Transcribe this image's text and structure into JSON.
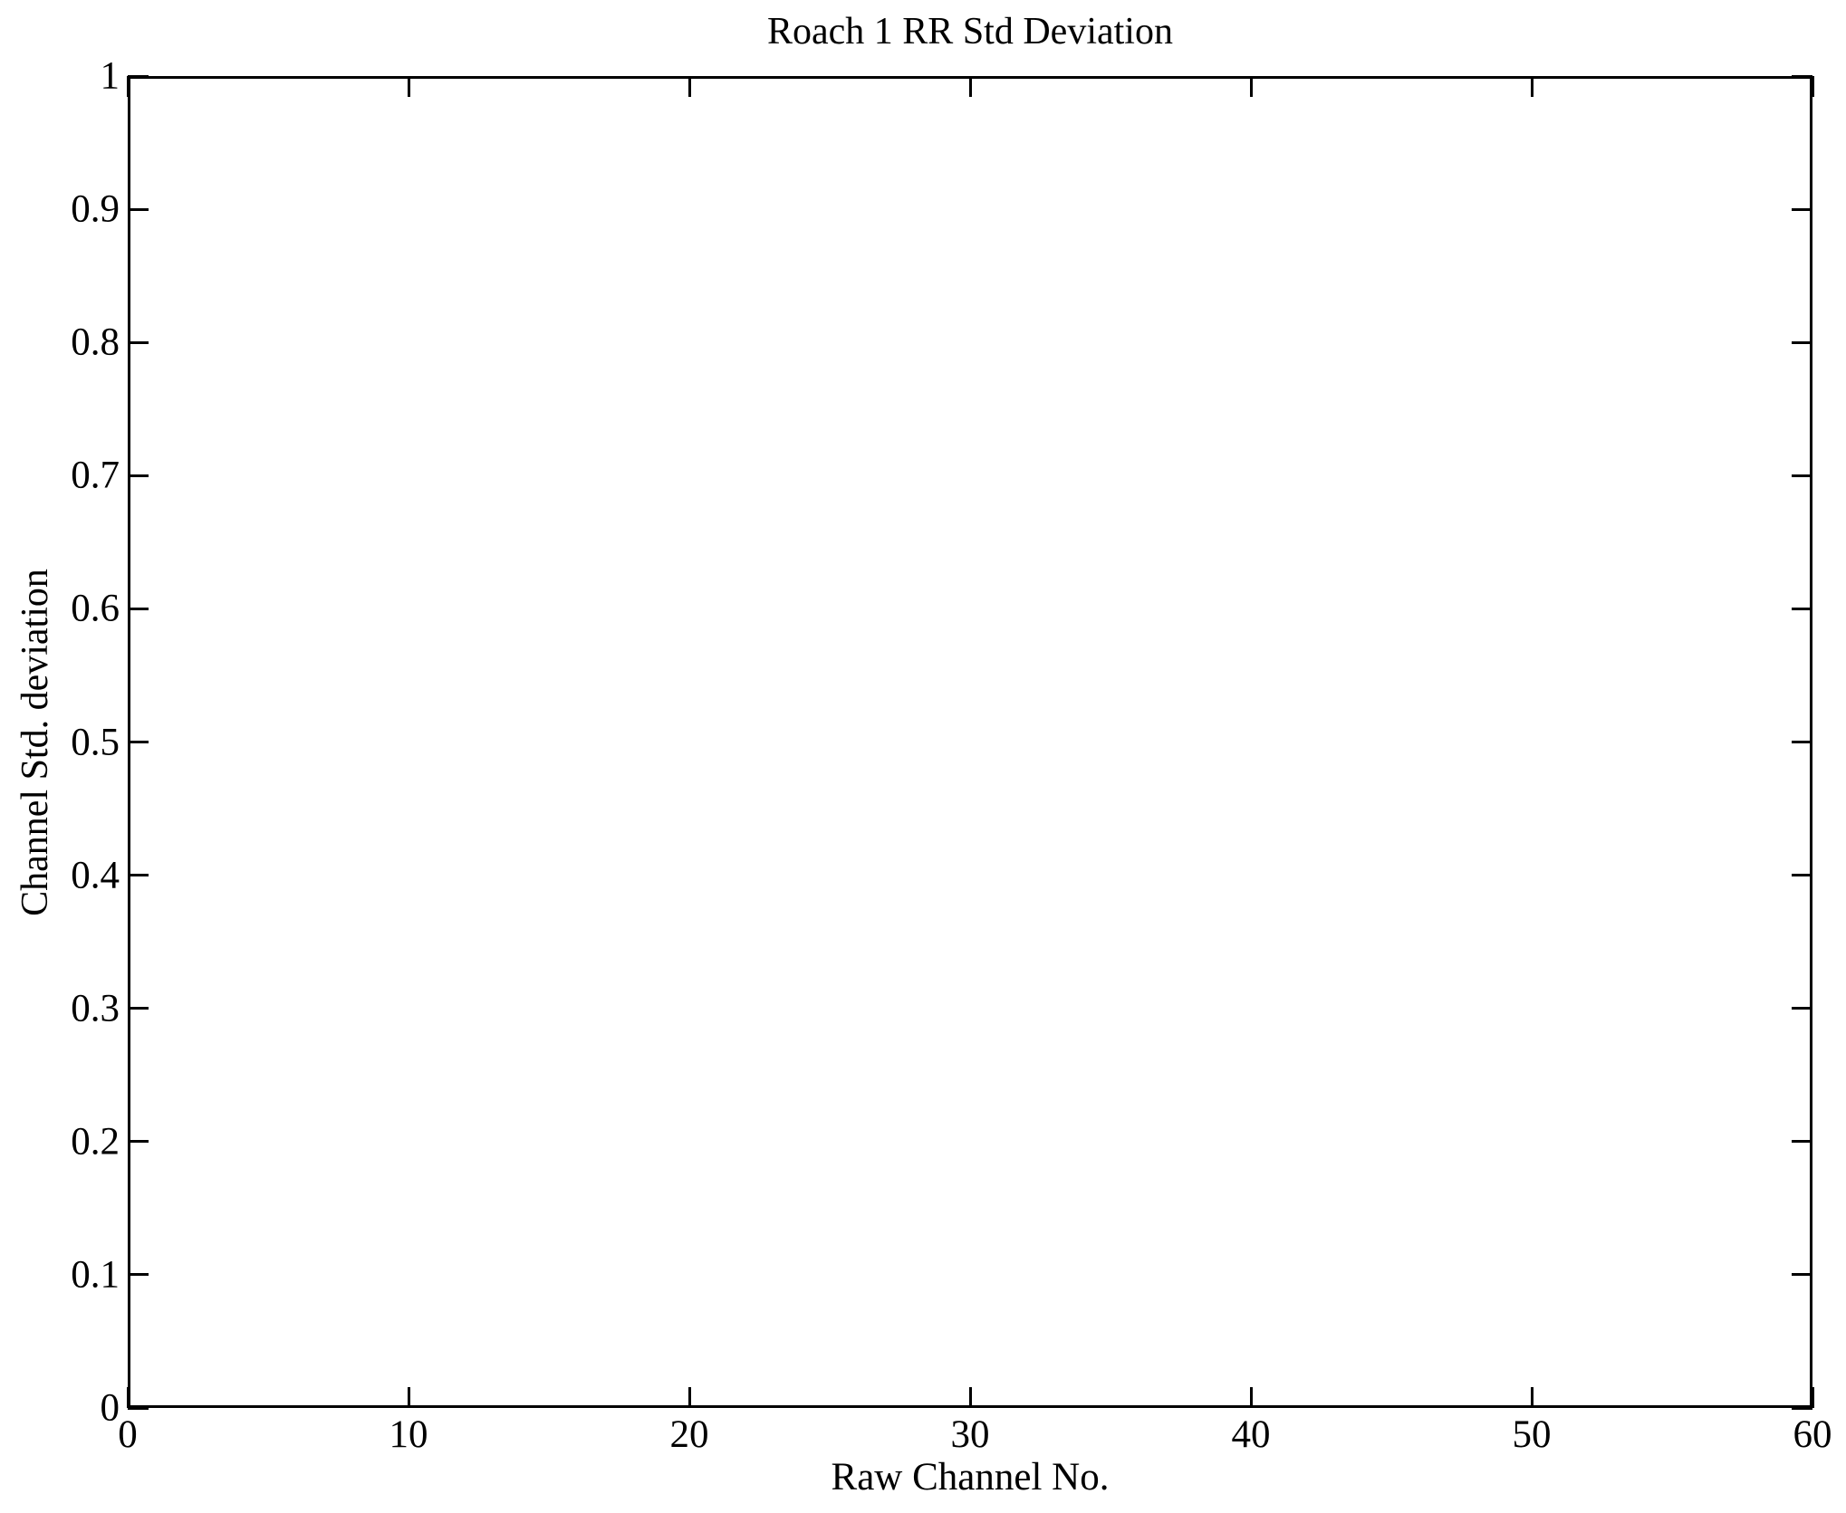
{
  "figure": {
    "background_color": "#ffffff",
    "axis_color": "#000000",
    "text_color": "#000000"
  },
  "chart_data": {
    "type": "line",
    "title": "Roach 1 RR Std Deviation",
    "xlabel": "Raw Channel No.",
    "ylabel": "Channel Std. deviation",
    "xlim": [
      0,
      60
    ],
    "ylim": [
      0,
      1
    ],
    "x_ticks": [
      0,
      10,
      20,
      30,
      40,
      50,
      60
    ],
    "x_tick_labels": [
      "0",
      "10",
      "20",
      "30",
      "40",
      "50",
      "60"
    ],
    "y_ticks": [
      0,
      0.1,
      0.2,
      0.3,
      0.4,
      0.5,
      0.6,
      0.7,
      0.8,
      0.9,
      1
    ],
    "y_tick_labels": [
      "0",
      "0.1",
      "0.2",
      "0.3",
      "0.4",
      "0.5",
      "0.6",
      "0.7",
      "0.8",
      "0.9",
      "1"
    ],
    "grid": false,
    "legend": null,
    "box": true,
    "ticks_direction": "in",
    "series": []
  }
}
